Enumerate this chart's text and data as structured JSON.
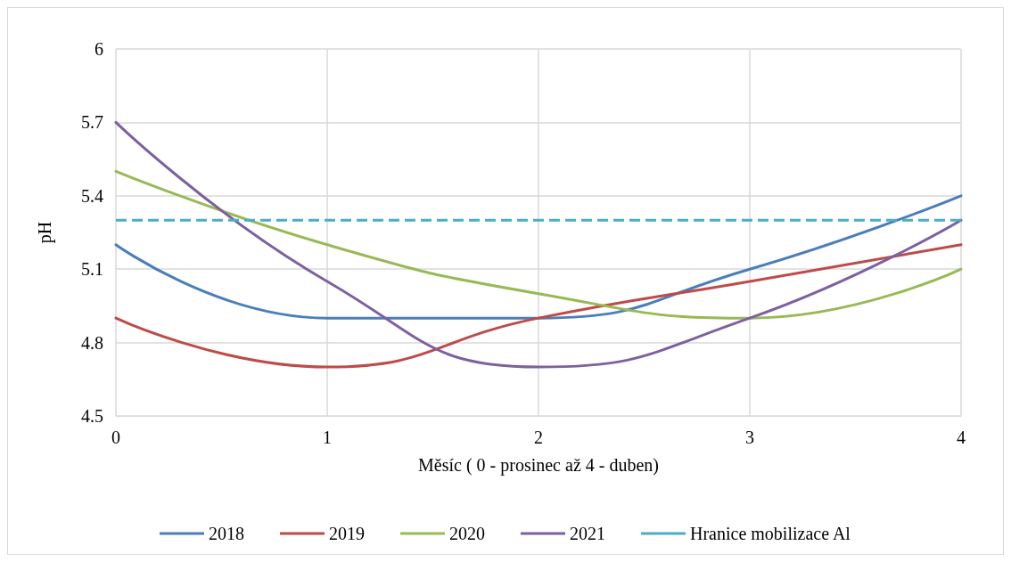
{
  "chart_data": {
    "type": "line",
    "xlabel": "Měsíc ( 0 - prosinec až 4 - duben)",
    "ylabel": "pH",
    "x": [
      0,
      1,
      2,
      3,
      4
    ],
    "xlim": [
      0,
      4
    ],
    "xticks": [
      0,
      1,
      2,
      3,
      4
    ],
    "ylim": [
      4.5,
      6
    ],
    "yticks": [
      4.5,
      4.8,
      5.1,
      5.4,
      5.7,
      6
    ],
    "grid": true,
    "legend": "bottom",
    "marker": "none",
    "line_style": "solid",
    "series": [
      {
        "name": "2018",
        "color": "#4a7ebb",
        "values": [
          5.2,
          4.9,
          4.9,
          5.1,
          5.4
        ]
      },
      {
        "name": "2019",
        "color": "#be4b48",
        "values": [
          4.9,
          4.7,
          4.9,
          5.05,
          5.2
        ]
      },
      {
        "name": "2020",
        "color": "#98b954",
        "values": [
          5.5,
          5.2,
          5.0,
          4.9,
          5.1
        ]
      },
      {
        "name": "2021",
        "color": "#7d60a0",
        "values": [
          5.7,
          5.05,
          4.7,
          4.9,
          5.3
        ]
      }
    ],
    "ref_lines": [
      {
        "axis": "y",
        "value": 5.3,
        "label": "Hranice mobilizace Al",
        "color": "#4bacc6",
        "line_style": "dashed"
      }
    ]
  }
}
